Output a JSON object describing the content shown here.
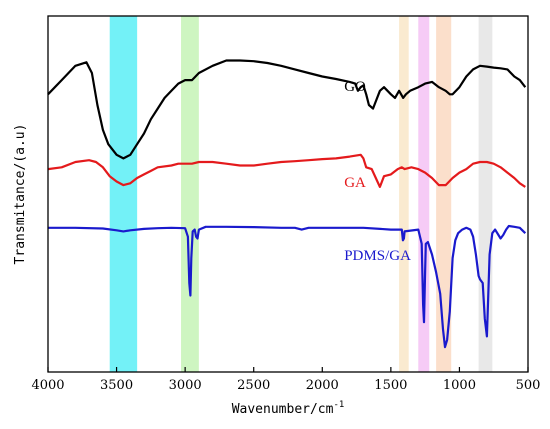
{
  "chart_data": {
    "type": "line",
    "title": "",
    "xlabel": "Wavenumber/cm",
    "xlabel_superscript": "-1",
    "ylabel": "Transmitance/(a.u)",
    "xlim": [
      4000,
      500
    ],
    "x_reversed": true,
    "ylim": [
      0,
      1
    ],
    "y_ticks_shown": false,
    "grid": false,
    "x_ticks": [
      "4000",
      "3500",
      "3000",
      "2500",
      "2000",
      "1500",
      "1000",
      "500"
    ],
    "highlight_bands": [
      {
        "from": 3550,
        "to": 3350,
        "color": "#00e5f0",
        "opacity": 0.55
      },
      {
        "from": 3030,
        "to": 2900,
        "color": "#a6ec8e",
        "opacity": 0.55
      },
      {
        "from": 1440,
        "to": 1370,
        "color": "#f7dcb0",
        "opacity": 0.6
      },
      {
        "from": 1300,
        "to": 1220,
        "color": "#f0a8f0",
        "opacity": 0.6
      },
      {
        "from": 1170,
        "to": 1060,
        "color": "#f8c9a8",
        "opacity": 0.6
      },
      {
        "from": 860,
        "to": 760,
        "color": "#d9d9d9",
        "opacity": 0.6
      }
    ],
    "series": [
      {
        "name": "GO",
        "color": "#000000",
        "label_at": [
          1840,
          0.79
        ],
        "points": [
          [
            4000,
            0.78
          ],
          [
            3900,
            0.82
          ],
          [
            3800,
            0.86
          ],
          [
            3720,
            0.87
          ],
          [
            3680,
            0.84
          ],
          [
            3640,
            0.75
          ],
          [
            3600,
            0.68
          ],
          [
            3560,
            0.64
          ],
          [
            3500,
            0.61
          ],
          [
            3450,
            0.6
          ],
          [
            3400,
            0.61
          ],
          [
            3350,
            0.64
          ],
          [
            3300,
            0.67
          ],
          [
            3250,
            0.71
          ],
          [
            3200,
            0.74
          ],
          [
            3150,
            0.77
          ],
          [
            3100,
            0.79
          ],
          [
            3050,
            0.81
          ],
          [
            3000,
            0.82
          ],
          [
            2950,
            0.82
          ],
          [
            2900,
            0.84
          ],
          [
            2800,
            0.86
          ],
          [
            2700,
            0.875
          ],
          [
            2600,
            0.875
          ],
          [
            2500,
            0.873
          ],
          [
            2400,
            0.868
          ],
          [
            2300,
            0.86
          ],
          [
            2200,
            0.85
          ],
          [
            2100,
            0.84
          ],
          [
            2000,
            0.83
          ],
          [
            1900,
            0.823
          ],
          [
            1800,
            0.815
          ],
          [
            1760,
            0.81
          ],
          [
            1740,
            0.79
          ],
          [
            1720,
            0.8
          ],
          [
            1700,
            0.805
          ],
          [
            1680,
            0.78
          ],
          [
            1660,
            0.75
          ],
          [
            1630,
            0.74
          ],
          [
            1610,
            0.76
          ],
          [
            1580,
            0.79
          ],
          [
            1550,
            0.8
          ],
          [
            1500,
            0.78
          ],
          [
            1470,
            0.77
          ],
          [
            1440,
            0.79
          ],
          [
            1410,
            0.77
          ],
          [
            1390,
            0.78
          ],
          [
            1360,
            0.79
          ],
          [
            1300,
            0.8
          ],
          [
            1250,
            0.81
          ],
          [
            1200,
            0.815
          ],
          [
            1150,
            0.8
          ],
          [
            1100,
            0.79
          ],
          [
            1070,
            0.78
          ],
          [
            1050,
            0.78
          ],
          [
            1000,
            0.8
          ],
          [
            950,
            0.83
          ],
          [
            900,
            0.85
          ],
          [
            850,
            0.86
          ],
          [
            800,
            0.858
          ],
          [
            750,
            0.855
          ],
          [
            700,
            0.853
          ],
          [
            650,
            0.85
          ],
          [
            600,
            0.83
          ],
          [
            560,
            0.82
          ],
          [
            520,
            0.8
          ]
        ]
      },
      {
        "name": "GA",
        "color": "#e41a1c",
        "label_at": [
          1840,
          0.52
        ],
        "points": [
          [
            4000,
            0.57
          ],
          [
            3900,
            0.575
          ],
          [
            3800,
            0.59
          ],
          [
            3700,
            0.595
          ],
          [
            3650,
            0.59
          ],
          [
            3600,
            0.575
          ],
          [
            3550,
            0.55
          ],
          [
            3500,
            0.535
          ],
          [
            3450,
            0.525
          ],
          [
            3400,
            0.53
          ],
          [
            3350,
            0.545
          ],
          [
            3300,
            0.555
          ],
          [
            3250,
            0.565
          ],
          [
            3200,
            0.575
          ],
          [
            3100,
            0.58
          ],
          [
            3050,
            0.585
          ],
          [
            3000,
            0.585
          ],
          [
            2950,
            0.585
          ],
          [
            2900,
            0.59
          ],
          [
            2800,
            0.59
          ],
          [
            2700,
            0.585
          ],
          [
            2600,
            0.58
          ],
          [
            2500,
            0.58
          ],
          [
            2400,
            0.585
          ],
          [
            2300,
            0.59
          ],
          [
            2200,
            0.592
          ],
          [
            2100,
            0.595
          ],
          [
            2000,
            0.598
          ],
          [
            1900,
            0.6
          ],
          [
            1800,
            0.605
          ],
          [
            1720,
            0.61
          ],
          [
            1700,
            0.6
          ],
          [
            1680,
            0.575
          ],
          [
            1640,
            0.57
          ],
          [
            1610,
            0.545
          ],
          [
            1580,
            0.52
          ],
          [
            1550,
            0.55
          ],
          [
            1500,
            0.555
          ],
          [
            1450,
            0.57
          ],
          [
            1420,
            0.575
          ],
          [
            1400,
            0.57
          ],
          [
            1350,
            0.575
          ],
          [
            1300,
            0.57
          ],
          [
            1250,
            0.56
          ],
          [
            1200,
            0.545
          ],
          [
            1150,
            0.525
          ],
          [
            1100,
            0.525
          ],
          [
            1050,
            0.545
          ],
          [
            1000,
            0.56
          ],
          [
            950,
            0.57
          ],
          [
            900,
            0.585
          ],
          [
            850,
            0.59
          ],
          [
            800,
            0.59
          ],
          [
            750,
            0.585
          ],
          [
            700,
            0.575
          ],
          [
            650,
            0.56
          ],
          [
            600,
            0.545
          ],
          [
            560,
            0.53
          ],
          [
            520,
            0.52
          ]
        ]
      },
      {
        "name": "PDMS/GA",
        "color": "#1a1acd",
        "label_at": [
          1840,
          0.315
        ],
        "points": [
          [
            4000,
            0.405
          ],
          [
            3800,
            0.405
          ],
          [
            3600,
            0.403
          ],
          [
            3500,
            0.398
          ],
          [
            3450,
            0.395
          ],
          [
            3400,
            0.398
          ],
          [
            3300,
            0.402
          ],
          [
            3200,
            0.404
          ],
          [
            3100,
            0.405
          ],
          [
            3000,
            0.404
          ],
          [
            2980,
            0.38
          ],
          [
            2970,
            0.25
          ],
          [
            2962,
            0.215
          ],
          [
            2955,
            0.32
          ],
          [
            2945,
            0.395
          ],
          [
            2930,
            0.4
          ],
          [
            2920,
            0.38
          ],
          [
            2910,
            0.375
          ],
          [
            2900,
            0.4
          ],
          [
            2850,
            0.408
          ],
          [
            2700,
            0.408
          ],
          [
            2500,
            0.407
          ],
          [
            2300,
            0.405
          ],
          [
            2200,
            0.405
          ],
          [
            2150,
            0.4
          ],
          [
            2100,
            0.405
          ],
          [
            1900,
            0.405
          ],
          [
            1700,
            0.405
          ],
          [
            1500,
            0.4
          ],
          [
            1420,
            0.4
          ],
          [
            1412,
            0.37
          ],
          [
            1405,
            0.375
          ],
          [
            1400,
            0.395
          ],
          [
            1300,
            0.4
          ],
          [
            1275,
            0.36
          ],
          [
            1265,
            0.19
          ],
          [
            1258,
            0.14
          ],
          [
            1250,
            0.28
          ],
          [
            1245,
            0.36
          ],
          [
            1230,
            0.365
          ],
          [
            1200,
            0.33
          ],
          [
            1170,
            0.28
          ],
          [
            1140,
            0.22
          ],
          [
            1120,
            0.12
          ],
          [
            1105,
            0.07
          ],
          [
            1090,
            0.09
          ],
          [
            1070,
            0.17
          ],
          [
            1050,
            0.32
          ],
          [
            1030,
            0.37
          ],
          [
            1010,
            0.39
          ],
          [
            980,
            0.4
          ],
          [
            950,
            0.405
          ],
          [
            920,
            0.4
          ],
          [
            900,
            0.38
          ],
          [
            880,
            0.33
          ],
          [
            860,
            0.27
          ],
          [
            850,
            0.26
          ],
          [
            830,
            0.25
          ],
          [
            815,
            0.15
          ],
          [
            800,
            0.1
          ],
          [
            790,
            0.21
          ],
          [
            780,
            0.33
          ],
          [
            760,
            0.39
          ],
          [
            740,
            0.4
          ],
          [
            700,
            0.375
          ],
          [
            680,
            0.385
          ],
          [
            660,
            0.4
          ],
          [
            640,
            0.41
          ],
          [
            600,
            0.408
          ],
          [
            560,
            0.405
          ],
          [
            520,
            0.39
          ]
        ]
      }
    ]
  }
}
